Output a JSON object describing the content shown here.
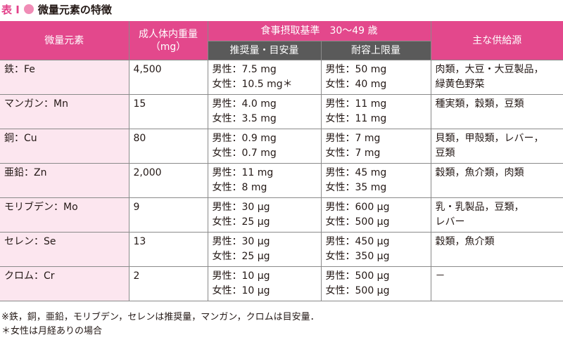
{
  "header": {
    "tag": "表 I",
    "title": "微量元素の特徴"
  },
  "table": {
    "columns": {
      "element": "微量元素",
      "weight": "成人体内重量\n（mg）",
      "intake": "食事摂取基準　30～49 歳",
      "recommended": "推奨量・目安量",
      "upper": "耐容上限量",
      "source": "主な供給源"
    },
    "rows": [
      [
        "鉄：Fe",
        "4,500",
        [
          "男性：7.5 mg",
          "女性：10.5 mg＊"
        ],
        [
          "男性：50 mg",
          "女性：40 mg"
        ],
        [
          "肉類，大豆・大豆製品，",
          "緑黄色野菜"
        ]
      ],
      [
        "マンガン：Mn",
        "15",
        [
          "男性：4.0 mg",
          "女性：3.5 mg"
        ],
        [
          "男性：11 mg",
          "女性：11 mg"
        ],
        [
          "種実類，穀類，豆類"
        ]
      ],
      [
        "銅：Cu",
        "80",
        [
          "男性：0.9 mg",
          "女性：0.7 mg"
        ],
        [
          "男性：7 mg",
          "女性：7 mg"
        ],
        [
          "貝類，甲殻類，レバー，",
          "豆類"
        ]
      ],
      [
        "亜鉛：Zn",
        "2,000",
        [
          "男性：11 mg",
          "女性：8 mg"
        ],
        [
          "男性：45 mg",
          "女性：35 mg"
        ],
        [
          "穀類，魚介類，肉類"
        ]
      ],
      [
        "モリブデン：Mo",
        "9",
        [
          "男性：30 μg",
          "女性：25 μg"
        ],
        [
          "男性：600 μg",
          "女性：500 μg"
        ],
        [
          "乳・乳製品，豆類，",
          "レバー"
        ]
      ],
      [
        "セレン：Se",
        "13",
        [
          "男性：30 μg",
          "女性：25 μg"
        ],
        [
          "男性：450 μg",
          "女性：350 μg"
        ],
        [
          "穀類，魚介類"
        ]
      ],
      [
        "クロム：Cr",
        "2",
        [
          "男性：10 μg",
          "女性：10 μg"
        ],
        [
          "男性：500 μg",
          "女性：500 μg"
        ],
        [
          "－"
        ]
      ]
    ]
  },
  "footnotes": [
    "※鉄，銅，亜鉛，モリブデン，セレンは推奨量，マンガン，クロムは目安量．",
    "＊女性は月経ありの場合"
  ]
}
